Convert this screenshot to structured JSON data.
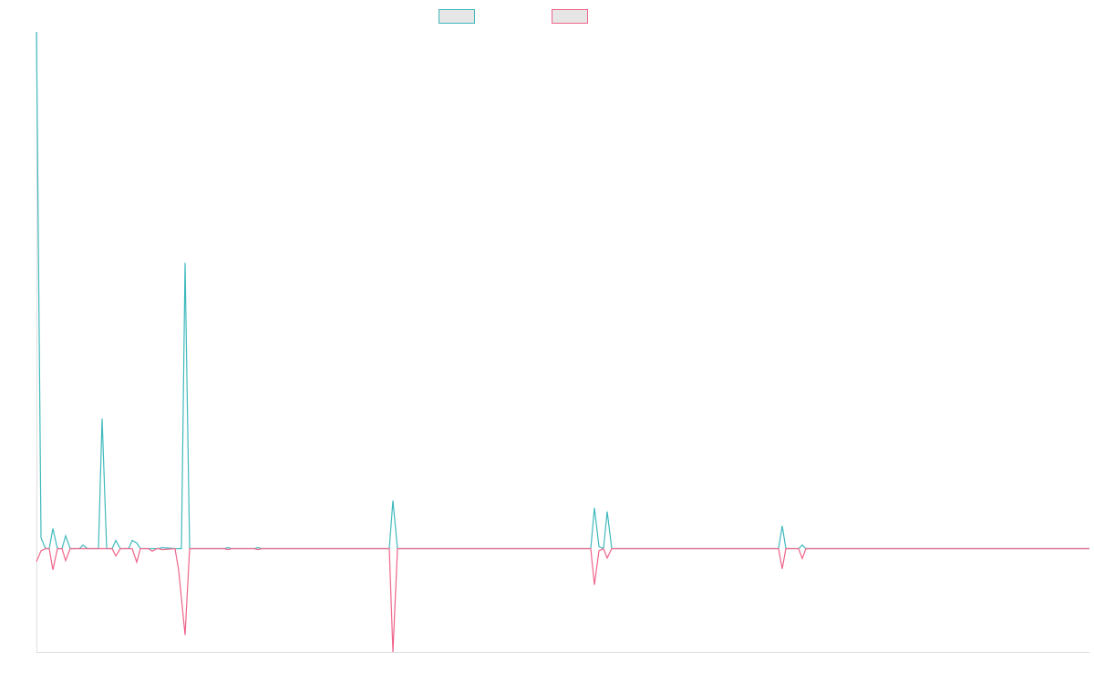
{
  "chart_data": {
    "type": "line",
    "x": [
      0,
      5,
      10,
      14,
      18,
      23,
      28,
      32,
      37,
      47,
      51,
      56,
      68,
      72,
      77,
      83,
      87,
      92,
      101,
      105,
      110,
      114,
      123,
      127,
      132,
      134,
      138,
      152,
      156,
      159,
      163,
      168,
      206,
      210,
      214,
      239,
      243,
      247,
      387,
      391,
      396,
      608,
      612,
      617,
      622,
      626,
      631,
      814,
      818,
      822,
      836,
      840,
      844,
      1155
    ],
    "series": [
      {
        "color": "#3fb9bd",
        "values": [
          100,
          2.1,
          0,
          0,
          3.9,
          0,
          0,
          2.5,
          0,
          0,
          0.7,
          0,
          0,
          25.2,
          0,
          0,
          1.6,
          0,
          0,
          1.6,
          1.1,
          0,
          0,
          0,
          0,
          0,
          0.2,
          0,
          0,
          0,
          55.3,
          0,
          0,
          0.2,
          0,
          0,
          0.2,
          0,
          0,
          9.3,
          0,
          0,
          7.9,
          0.4,
          0,
          7.2,
          0,
          0,
          4.4,
          0,
          0,
          0.7,
          0,
          0
        ]
      },
      {
        "color": "#f0648a",
        "values": [
          -2.5,
          -0.4,
          0,
          0,
          -4.1,
          0,
          0,
          -2.3,
          0,
          0,
          0,
          0,
          0,
          0,
          0,
          0,
          -1.4,
          0,
          0,
          0,
          -2.6,
          0,
          0,
          -0.5,
          0,
          0,
          -0.2,
          0,
          -4.2,
          -9.6,
          -16.7,
          0,
          0,
          -0.2,
          0,
          0,
          -0.2,
          0,
          0,
          -20,
          0,
          0,
          -7,
          -0.4,
          0,
          -1.8,
          0,
          0,
          -3.9,
          0,
          0,
          -1.9,
          0,
          0
        ]
      }
    ],
    "xlim": [
      0,
      1155
    ],
    "ylim": [
      -20,
      100
    ]
  }
}
